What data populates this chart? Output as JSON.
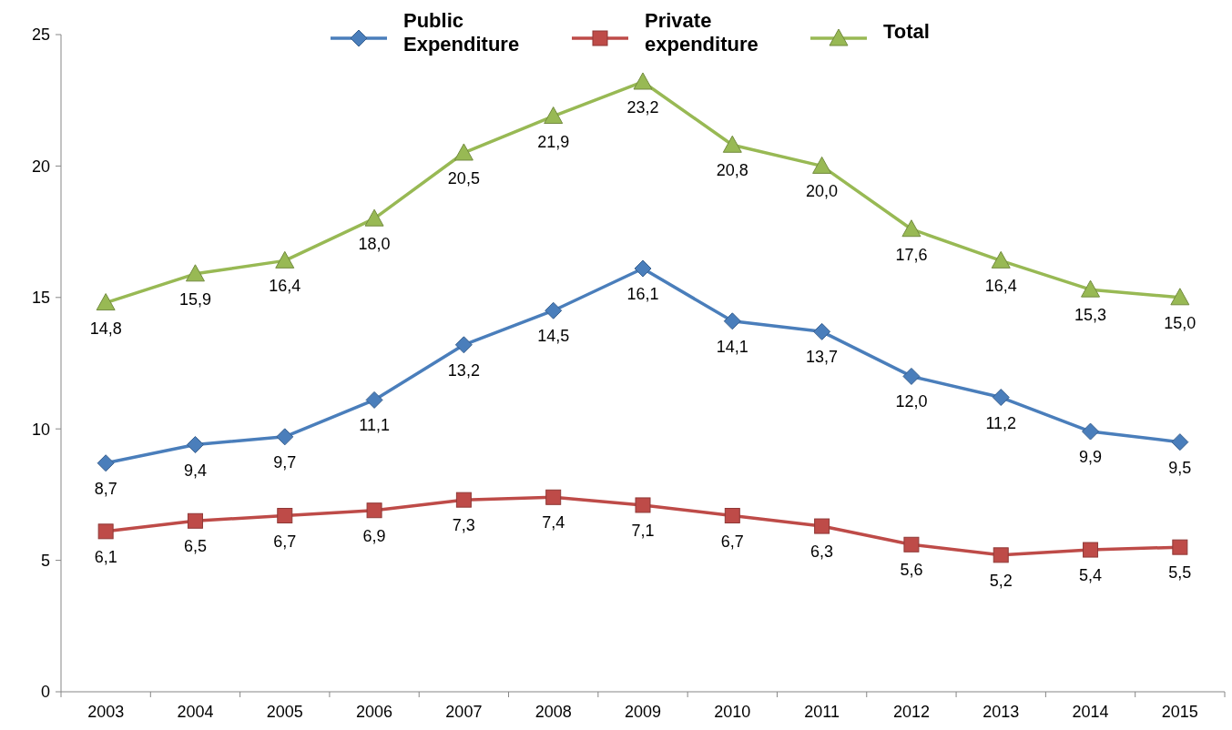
{
  "chart_data": {
    "type": "line",
    "categories": [
      "2003",
      "2004",
      "2005",
      "2006",
      "2007",
      "2008",
      "2009",
      "2010",
      "2011",
      "2012",
      "2013",
      "2014",
      "2015"
    ],
    "series": [
      {
        "name": "Public Expenditure",
        "color": "#4a7ebb",
        "marker": "diamond",
        "values": [
          8.7,
          9.4,
          9.7,
          11.1,
          13.2,
          14.5,
          16.1,
          14.1,
          13.7,
          12.0,
          11.2,
          9.9,
          9.5
        ],
        "value_labels": [
          "8,7",
          "9,4",
          "9,7",
          "11,1",
          "13,2",
          "14,5",
          "16,1",
          "14,1",
          "13,7",
          "12,0",
          "11,2",
          "9,9",
          "9,5"
        ]
      },
      {
        "name": "Private expenditure",
        "color": "#be4b48",
        "marker": "square",
        "values": [
          6.1,
          6.5,
          6.7,
          6.9,
          7.3,
          7.4,
          7.1,
          6.7,
          6.3,
          5.6,
          5.2,
          5.4,
          5.5
        ],
        "value_labels": [
          "6,1",
          "6,5",
          "6,7",
          "6,9",
          "7,3",
          "7,4",
          "7,1",
          "6,7",
          "6,3",
          "5,6",
          "5,2",
          "5,4",
          "5,5"
        ]
      },
      {
        "name": "Total",
        "color": "#98b954",
        "marker": "triangle",
        "values": [
          14.8,
          15.9,
          16.4,
          18.0,
          20.5,
          21.9,
          23.2,
          20.8,
          20.0,
          17.6,
          16.4,
          15.3,
          15.0
        ],
        "value_labels": [
          "14,8",
          "15,9",
          "16,4",
          "18,0",
          "20,5",
          "21,9",
          "23,2",
          "20,8",
          "20,0",
          "17,6",
          "16,4",
          "15,3",
          "15,0"
        ]
      }
    ],
    "ylim": [
      0,
      25
    ],
    "yticks": [
      0,
      5,
      10,
      15,
      20,
      25
    ],
    "grid": false,
    "legend": "top"
  }
}
